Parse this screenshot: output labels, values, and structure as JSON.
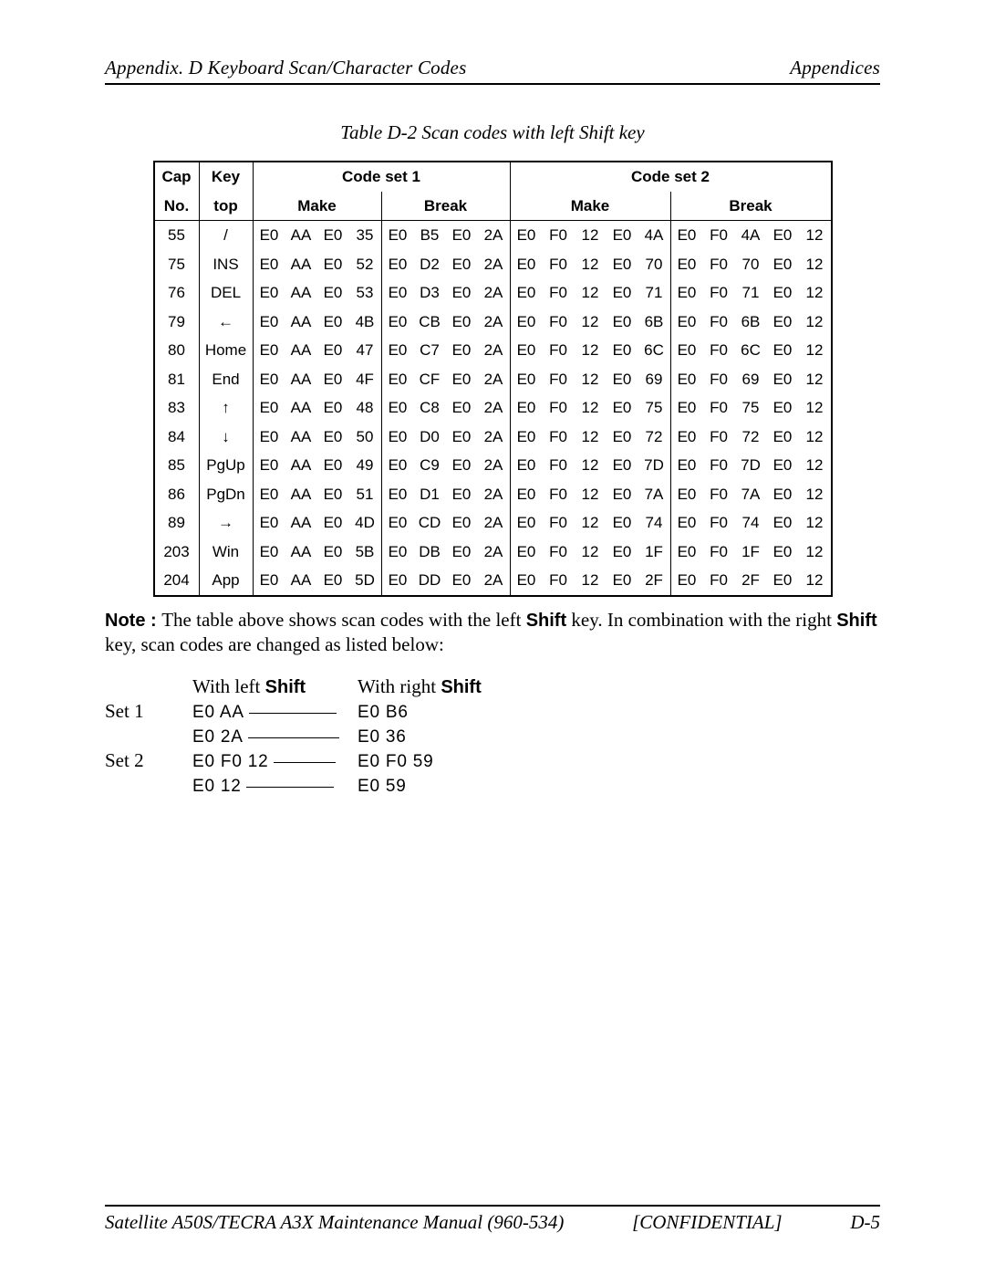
{
  "header": {
    "left": "Appendix. D   Keyboard Scan/Character Codes",
    "right": "Appendices"
  },
  "caption": "Table D-2  Scan codes with left Shift key",
  "table": {
    "head": {
      "cap": "Cap",
      "no": "No.",
      "key": "Key",
      "top": "top",
      "set1": "Code set 1",
      "set2": "Code set 2",
      "make": "Make",
      "break": "Break"
    },
    "rows": [
      {
        "cap": "55",
        "key": "/",
        "m1": [
          "E0",
          "AA",
          "E0",
          "35"
        ],
        "b1": [
          "E0",
          "B5",
          "E0",
          "2A"
        ],
        "m2": [
          "E0",
          "F0",
          "12",
          "E0",
          "4A"
        ],
        "b2": [
          "E0",
          "F0",
          "4A",
          "E0",
          "12"
        ]
      },
      {
        "cap": "75",
        "key": "INS",
        "m1": [
          "E0",
          "AA",
          "E0",
          "52"
        ],
        "b1": [
          "E0",
          "D2",
          "E0",
          "2A"
        ],
        "m2": [
          "E0",
          "F0",
          "12",
          "E0",
          "70"
        ],
        "b2": [
          "E0",
          "F0",
          "70",
          "E0",
          "12"
        ]
      },
      {
        "cap": "76",
        "key": "DEL",
        "m1": [
          "E0",
          "AA",
          "E0",
          "53"
        ],
        "b1": [
          "E0",
          "D3",
          "E0",
          "2A"
        ],
        "m2": [
          "E0",
          "F0",
          "12",
          "E0",
          "71"
        ],
        "b2": [
          "E0",
          "F0",
          "71",
          "E0",
          "12"
        ]
      },
      {
        "cap": "79",
        "key": "←",
        "m1": [
          "E0",
          "AA",
          "E0",
          "4B"
        ],
        "b1": [
          "E0",
          "CB",
          "E0",
          "2A"
        ],
        "m2": [
          "E0",
          "F0",
          "12",
          "E0",
          "6B"
        ],
        "b2": [
          "E0",
          "F0",
          "6B",
          "E0",
          "12"
        ]
      },
      {
        "cap": "80",
        "key": "Home",
        "m1": [
          "E0",
          "AA",
          "E0",
          "47"
        ],
        "b1": [
          "E0",
          "C7",
          "E0",
          "2A"
        ],
        "m2": [
          "E0",
          "F0",
          "12",
          "E0",
          "6C"
        ],
        "b2": [
          "E0",
          "F0",
          "6C",
          "E0",
          "12"
        ]
      },
      {
        "cap": "81",
        "key": "End",
        "m1": [
          "E0",
          "AA",
          "E0",
          "4F"
        ],
        "b1": [
          "E0",
          "CF",
          "E0",
          "2A"
        ],
        "m2": [
          "E0",
          "F0",
          "12",
          "E0",
          "69"
        ],
        "b2": [
          "E0",
          "F0",
          "69",
          "E0",
          "12"
        ]
      },
      {
        "cap": "83",
        "key": "↑",
        "m1": [
          "E0",
          "AA",
          "E0",
          "48"
        ],
        "b1": [
          "E0",
          "C8",
          "E0",
          "2A"
        ],
        "m2": [
          "E0",
          "F0",
          "12",
          "E0",
          "75"
        ],
        "b2": [
          "E0",
          "F0",
          "75",
          "E0",
          "12"
        ]
      },
      {
        "cap": "84",
        "key": "↓",
        "m1": [
          "E0",
          "AA",
          "E0",
          "50"
        ],
        "b1": [
          "E0",
          "D0",
          "E0",
          "2A"
        ],
        "m2": [
          "E0",
          "F0",
          "12",
          "E0",
          "72"
        ],
        "b2": [
          "E0",
          "F0",
          "72",
          "E0",
          "12"
        ]
      },
      {
        "cap": "85",
        "key": "PgUp",
        "m1": [
          "E0",
          "AA",
          "E0",
          "49"
        ],
        "b1": [
          "E0",
          "C9",
          "E0",
          "2A"
        ],
        "m2": [
          "E0",
          "F0",
          "12",
          "E0",
          "7D"
        ],
        "b2": [
          "E0",
          "F0",
          "7D",
          "E0",
          "12"
        ]
      },
      {
        "cap": "86",
        "key": "PgDn",
        "m1": [
          "E0",
          "AA",
          "E0",
          "51"
        ],
        "b1": [
          "E0",
          "D1",
          "E0",
          "2A"
        ],
        "m2": [
          "E0",
          "F0",
          "12",
          "E0",
          "7A"
        ],
        "b2": [
          "E0",
          "F0",
          "7A",
          "E0",
          "12"
        ]
      },
      {
        "cap": "89",
        "key": "→",
        "m1": [
          "E0",
          "AA",
          "E0",
          "4D"
        ],
        "b1": [
          "E0",
          "CD",
          "E0",
          "2A"
        ],
        "m2": [
          "E0",
          "F0",
          "12",
          "E0",
          "74"
        ],
        "b2": [
          "E0",
          "F0",
          "74",
          "E0",
          "12"
        ]
      },
      {
        "cap": "203",
        "key": "Win",
        "m1": [
          "E0",
          "AA",
          "E0",
          "5B"
        ],
        "b1": [
          "E0",
          "DB",
          "E0",
          "2A"
        ],
        "m2": [
          "E0",
          "F0",
          "12",
          "E0",
          "1F"
        ],
        "b2": [
          "E0",
          "F0",
          "1F",
          "E0",
          "12"
        ]
      },
      {
        "cap": "204",
        "key": "App",
        "m1": [
          "E0",
          "AA",
          "E0",
          "5D"
        ],
        "b1": [
          "E0",
          "DD",
          "E0",
          "2A"
        ],
        "m2": [
          "E0",
          "F0",
          "12",
          "E0",
          "2F"
        ],
        "b2": [
          "E0",
          "F0",
          "2F",
          "E0",
          "12"
        ]
      }
    ]
  },
  "note": {
    "prefix": "Note : ",
    "body1": "The table above shows scan codes with the left ",
    "shift": "Shift",
    "body2": " key.  In combination with the right ",
    "body3": " key, scan codes are changed as listed below:"
  },
  "subst": {
    "h_left": "With left ",
    "h_right": "With right ",
    "set1": "Set 1",
    "set2": "Set 2",
    "rows": [
      {
        "set": true,
        "label": "Set 1",
        "l": "E0  AA",
        "r": "E0  B6"
      },
      {
        "set": false,
        "label": "",
        "l": "E0  2A",
        "r": "E0  36"
      },
      {
        "set": true,
        "label": "Set 2",
        "l": "E0  F0  12",
        "r": "E0  F0  59"
      },
      {
        "set": false,
        "label": "",
        "l": "E0  12",
        "r": "E0  59"
      }
    ]
  },
  "footer": {
    "left": "Satellite A50S/TECRA A3X  Maintenance Manual (960-534)",
    "center": "[CONFIDENTIAL]",
    "right": "D-5"
  }
}
